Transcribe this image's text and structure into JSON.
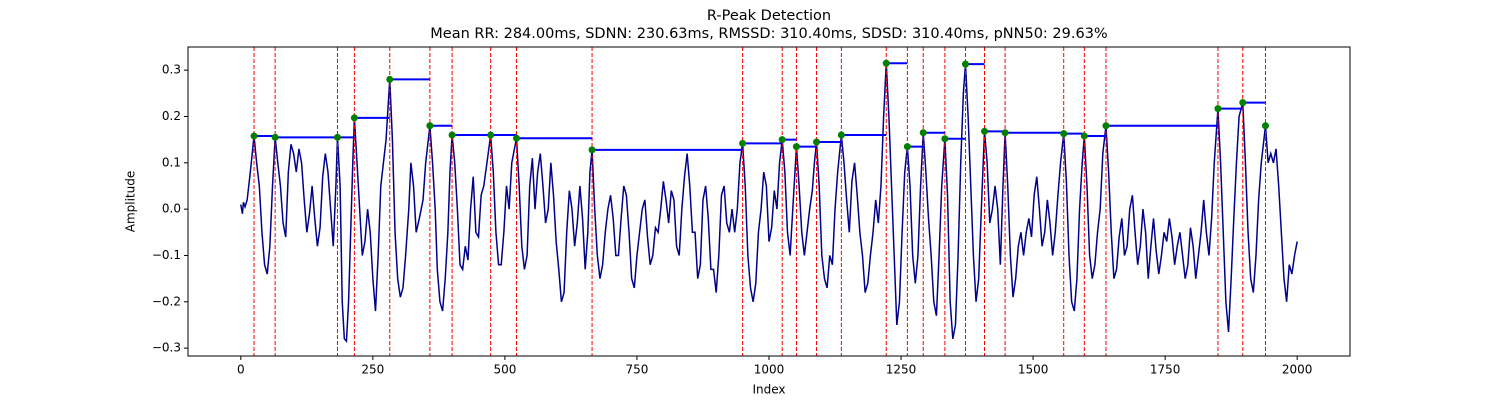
{
  "chart_data": {
    "type": "line",
    "title": "R-Peak Detection",
    "subtitle": "Mean RR: 284.00ms, SDNN: 230.63ms, RMSSD: 310.40ms, SDSD: 310.40ms, pNN50: 29.63%",
    "x_label": "Index",
    "y_label": "Amplitude",
    "xlim": [
      -100,
      2100
    ],
    "ylim": [
      -0.317,
      0.35
    ],
    "xticks": [
      0,
      250,
      500,
      750,
      1000,
      1250,
      1500,
      1750,
      2000
    ],
    "yticks": [
      {
        "value": -0.3,
        "label": "−0.3"
      },
      {
        "value": -0.2,
        "label": "−0.2"
      },
      {
        "value": -0.1,
        "label": "−0.1"
      },
      {
        "value": 0,
        "label": "0.0"
      },
      0.1,
      0.2,
      0.3
    ],
    "series": [
      {
        "color": "#00008b",
        "x": [
          0,
          3,
          5,
          8,
          12,
          18,
          25,
          30,
          35,
          40,
          45,
          50,
          55,
          60,
          65,
          70,
          75,
          80,
          85,
          90,
          95,
          100,
          105,
          110,
          115,
          120,
          125,
          130,
          135,
          140,
          145,
          150,
          155,
          160,
          165,
          170,
          175,
          180,
          183,
          188,
          192,
          196,
          200,
          204,
          208,
          212,
          215,
          220,
          225,
          230,
          235,
          240,
          245,
          250,
          255,
          260,
          265,
          270,
          275,
          282,
          287,
          292,
          297,
          302,
          307,
          312,
          318,
          322,
          327,
          332,
          338,
          345,
          350,
          358,
          363,
          368,
          372,
          377,
          382,
          387,
          392,
          396,
          400,
          405,
          410,
          415,
          420,
          425,
          430,
          435,
          440,
          445,
          450,
          455,
          460,
          466,
          473,
          478,
          483,
          488,
          493,
          498,
          503,
          508,
          513,
          518,
          522,
          527,
          532,
          537,
          542,
          547,
          552,
          557,
          562,
          567,
          572,
          577,
          582,
          587,
          592,
          597,
          602,
          607,
          612,
          617,
          622,
          627,
          632,
          637,
          642,
          647,
          652,
          657,
          661,
          665,
          670,
          675,
          680,
          685,
          690,
          695,
          700,
          705,
          710,
          715,
          720,
          725,
          730,
          735,
          740,
          745,
          750,
          755,
          760,
          765,
          770,
          775,
          780,
          785,
          790,
          795,
          800,
          805,
          810,
          815,
          820,
          825,
          830,
          835,
          840,
          845,
          850,
          855,
          860,
          865,
          870,
          875,
          880,
          885,
          890,
          895,
          900,
          905,
          910,
          915,
          920,
          925,
          930,
          935,
          940,
          945,
          950,
          955,
          960,
          965,
          970,
          975,
          980,
          985,
          990,
          995,
          1000,
          1005,
          1010,
          1015,
          1020,
          1025,
          1030,
          1035,
          1040,
          1045,
          1052,
          1057,
          1062,
          1067,
          1072,
          1077,
          1082,
          1086,
          1090,
          1095,
          1100,
          1105,
          1110,
          1115,
          1120,
          1125,
          1130,
          1137,
          1142,
          1147,
          1152,
          1157,
          1162,
          1167,
          1172,
          1177,
          1182,
          1187,
          1192,
          1197,
          1202,
          1207,
          1212,
          1217,
          1222,
          1227,
          1232,
          1237,
          1242,
          1247,
          1252,
          1257,
          1262,
          1267,
          1272,
          1277,
          1282,
          1287,
          1292,
          1297,
          1302,
          1307,
          1312,
          1317,
          1322,
          1327,
          1333,
          1338,
          1343,
          1348,
          1353,
          1358,
          1363,
          1368,
          1372,
          1377,
          1382,
          1387,
          1392,
          1397,
          1402,
          1408,
          1413,
          1418,
          1423,
          1428,
          1433,
          1438,
          1443,
          1447,
          1452,
          1457,
          1462,
          1467,
          1472,
          1477,
          1482,
          1487,
          1492,
          1497,
          1502,
          1507,
          1512,
          1517,
          1522,
          1527,
          1532,
          1537,
          1542,
          1547,
          1552,
          1558,
          1563,
          1568,
          1573,
          1578,
          1583,
          1588,
          1593,
          1597,
          1602,
          1607,
          1612,
          1617,
          1622,
          1627,
          1632,
          1638,
          1643,
          1648,
          1653,
          1658,
          1663,
          1668,
          1673,
          1678,
          1683,
          1688,
          1693,
          1698,
          1703,
          1708,
          1713,
          1718,
          1723,
          1728,
          1733,
          1738,
          1743,
          1748,
          1753,
          1758,
          1763,
          1768,
          1773,
          1778,
          1783,
          1788,
          1793,
          1798,
          1803,
          1808,
          1813,
          1818,
          1823,
          1828,
          1833,
          1838,
          1843,
          1850,
          1855,
          1860,
          1865,
          1870,
          1875,
          1880,
          1885,
          1890,
          1897,
          1902,
          1907,
          1912,
          1917,
          1922,
          1927,
          1932,
          1940,
          1945,
          1950,
          1955,
          1960,
          1965,
          1970,
          1975,
          1980,
          1985,
          1990,
          1995,
          2000
        ],
        "values": [
          0.01,
          -0.01,
          0.015,
          0.005,
          0.02,
          0.08,
          0.158,
          0.1,
          0.05,
          -0.05,
          -0.12,
          -0.14,
          -0.08,
          0.05,
          0.155,
          0.1,
          0.05,
          -0.03,
          -0.06,
          0.08,
          0.14,
          0.12,
          0.08,
          0.13,
          0.1,
          0.02,
          -0.05,
          -0.01,
          0.05,
          -0.02,
          -0.08,
          -0.04,
          0.07,
          0.12,
          0.08,
          0,
          -0.08,
          0.05,
          0.155,
          0.05,
          -0.2,
          -0.28,
          -0.285,
          -0.2,
          -0.05,
          0.1,
          0.197,
          0.1,
          0,
          -0.1,
          -0.07,
          0,
          -0.05,
          -0.15,
          -0.22,
          -0.1,
          0.05,
          0.1,
          0.15,
          0.28,
          0.15,
          -0.05,
          -0.15,
          -0.19,
          -0.17,
          -0.1,
          0,
          0.1,
          0.05,
          -0.05,
          -0.02,
          0.02,
          0.1,
          0.18,
          0.1,
          0,
          -0.13,
          -0.2,
          -0.22,
          -0.15,
          -0.05,
          0.08,
          0.16,
          0.1,
          0,
          -0.12,
          -0.13,
          -0.08,
          -0.11,
          0,
          0.07,
          -0.05,
          -0.06,
          0.03,
          0.05,
          0.1,
          0.16,
          0.08,
          -0.05,
          -0.12,
          -0.12,
          -0.05,
          0.05,
          0,
          0.1,
          0.13,
          0.153,
          0.05,
          -0.08,
          -0.13,
          -0.1,
          0.05,
          0.11,
          0,
          0.08,
          0.12,
          0.05,
          -0.03,
          0,
          0.1,
          0.03,
          -0.07,
          -0.13,
          -0.2,
          -0.18,
          -0.05,
          0.04,
          0,
          -0.08,
          -0.03,
          0.05,
          -0.02,
          -0.13,
          -0.05,
          0.08,
          0.128,
          0,
          -0.1,
          -0.15,
          -0.12,
          -0.05,
          0,
          0.03,
          -0.02,
          -0.1,
          -0.1,
          -0.02,
          0.05,
          0.03,
          -0.05,
          -0.15,
          -0.17,
          -0.1,
          -0.05,
          0,
          0.02,
          -0.06,
          -0.12,
          -0.1,
          -0.04,
          -0.05,
          0,
          0.06,
          0.02,
          -0.03,
          0.04,
          0.02,
          -0.08,
          -0.1,
          0,
          0.07,
          0.12,
          0.05,
          -0.05,
          -0.05,
          -0.15,
          -0.12,
          0.02,
          0.05,
          -0.02,
          -0.13,
          -0.13,
          -0.18,
          -0.1,
          0.03,
          0.05,
          -0.03,
          -0.05,
          0,
          -0.05,
          0,
          0.1,
          0.142,
          0.05,
          -0.1,
          -0.17,
          -0.2,
          -0.16,
          -0.05,
          0,
          0.08,
          0.05,
          -0.07,
          -0.04,
          0.04,
          0,
          0.1,
          0.15,
          0.08,
          -0.05,
          -0.1,
          0,
          0.135,
          0.05,
          -0.05,
          -0.1,
          -0.05,
          0,
          0.04,
          0.1,
          0.145,
          0.05,
          -0.1,
          -0.15,
          -0.17,
          -0.1,
          -0.12,
          0,
          0.08,
          0.16,
          0.1,
          0.02,
          -0.05,
          0.06,
          0.1,
          0.03,
          -0.05,
          -0.1,
          -0.18,
          -0.16,
          -0.1,
          -0.05,
          0.02,
          -0.03,
          0.05,
          0.2,
          0.315,
          0.2,
          0.05,
          -0.1,
          -0.25,
          -0.2,
          -0.05,
          0.08,
          0.135,
          0.05,
          -0.1,
          -0.16,
          -0.1,
          0.05,
          0.165,
          0.08,
          -0.02,
          -0.1,
          -0.2,
          -0.23,
          -0.1,
          0.05,
          0.152,
          0.03,
          -0.2,
          -0.28,
          -0.25,
          -0.1,
          0.1,
          0.25,
          0.313,
          0.2,
          0.05,
          -0.1,
          -0.2,
          -0.15,
          0,
          0.168,
          0.1,
          -0.03,
          0,
          0.05,
          0,
          -0.12,
          0.05,
          0.165,
          0.05,
          -0.1,
          -0.19,
          -0.15,
          -0.08,
          -0.05,
          -0.1,
          -0.05,
          -0.02,
          -0.06,
          0.03,
          0.07,
          0,
          -0.08,
          -0.05,
          0.02,
          -0.03,
          -0.1,
          -0.05,
          0.03,
          0.1,
          0.163,
          0.06,
          -0.1,
          -0.2,
          -0.22,
          -0.15,
          0,
          0.1,
          0.158,
          0.05,
          -0.1,
          -0.15,
          -0.12,
          -0.05,
          0,
          0.12,
          0.18,
          0.08,
          -0.05,
          -0.15,
          -0.13,
          -0.06,
          -0.02,
          -0.1,
          -0.08,
          0,
          0.03,
          -0.05,
          -0.12,
          -0.08,
          0,
          -0.05,
          -0.15,
          -0.08,
          -0.02,
          -0.09,
          -0.14,
          -0.1,
          -0.05,
          -0.07,
          -0.02,
          -0.06,
          -0.12,
          -0.08,
          -0.05,
          -0.1,
          -0.15,
          -0.12,
          -0.04,
          -0.08,
          -0.15,
          -0.1,
          -0.05,
          0.02,
          -0.05,
          -0.1,
          -0.02,
          0.1,
          0.217,
          0.1,
          -0.05,
          -0.2,
          -0.265,
          -0.15,
          -0.02,
          0.1,
          0.2,
          0.23,
          0.1,
          -0.05,
          -0.15,
          -0.18,
          -0.1,
          0.02,
          0.1,
          0.18,
          0.1,
          0.12,
          0.1,
          0.13,
          0.05,
          -0.05,
          -0.15,
          -0.2,
          -0.12,
          -0.14,
          -0.1,
          -0.07
        ]
      }
    ],
    "peaks": {
      "color": "green",
      "marker_line_color": "red",
      "step_color": "blue",
      "x": [
        25,
        65,
        183,
        215,
        282,
        358,
        400,
        473,
        522,
        665,
        950,
        1025,
        1052,
        1090,
        1137,
        1222,
        1262,
        1292,
        1333,
        1372,
        1408,
        1447,
        1558,
        1597,
        1638,
        1850,
        1897,
        1940
      ],
      "values": [
        0.158,
        0.155,
        0.155,
        0.197,
        0.28,
        0.18,
        0.16,
        0.16,
        0.153,
        0.128,
        0.142,
        0.15,
        0.135,
        0.145,
        0.16,
        0.315,
        0.135,
        0.165,
        0.152,
        0.313,
        0.168,
        0.165,
        0.163,
        0.158,
        0.18,
        0.217,
        0.23,
        0.18
      ]
    }
  }
}
